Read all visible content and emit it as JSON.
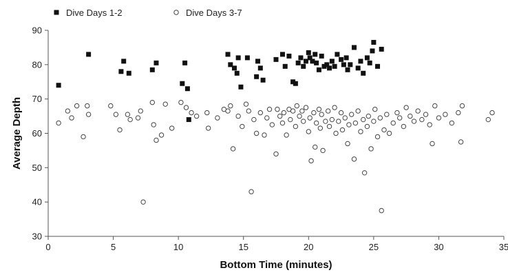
{
  "chart_data": {
    "type": "scatter",
    "title": "",
    "xlabel": "Bottom Time (minutes)",
    "ylabel": "Average Depth",
    "xlim": [
      0,
      35
    ],
    "ylim": [
      30,
      90
    ],
    "xticks": [
      0,
      5,
      10,
      15,
      20,
      25,
      30,
      35
    ],
    "yticks": [
      30,
      40,
      50,
      60,
      70,
      80,
      90
    ],
    "grid": false,
    "legend_position": "top-left",
    "series": [
      {
        "name": "Dive Days 1-2",
        "marker": "filled-square",
        "color": "#111111",
        "points": [
          [
            0.8,
            74.0
          ],
          [
            3.1,
            83.0
          ],
          [
            5.6,
            78.0
          ],
          [
            5.8,
            81.0
          ],
          [
            6.2,
            77.5
          ],
          [
            8.0,
            78.5
          ],
          [
            8.3,
            80.5
          ],
          [
            10.3,
            74.5
          ],
          [
            10.5,
            80.5
          ],
          [
            10.7,
            73.0
          ],
          [
            10.8,
            64.0
          ],
          [
            13.8,
            83.0
          ],
          [
            14.0,
            80.0
          ],
          [
            14.3,
            79.0
          ],
          [
            14.5,
            77.5
          ],
          [
            14.6,
            82.0
          ],
          [
            14.8,
            73.5
          ],
          [
            15.3,
            82.0
          ],
          [
            16.0,
            76.5
          ],
          [
            16.1,
            81.0
          ],
          [
            16.3,
            79.0
          ],
          [
            16.5,
            75.5
          ],
          [
            17.5,
            81.5
          ],
          [
            18.0,
            83.0
          ],
          [
            18.2,
            79.5
          ],
          [
            18.5,
            82.5
          ],
          [
            18.8,
            75.0
          ],
          [
            19.0,
            74.5
          ],
          [
            19.2,
            80.5
          ],
          [
            19.4,
            82.0
          ],
          [
            19.6,
            79.5
          ],
          [
            19.8,
            81.0
          ],
          [
            20.0,
            83.5
          ],
          [
            20.1,
            82.0
          ],
          [
            20.3,
            81.0
          ],
          [
            20.5,
            83.0
          ],
          [
            20.6,
            80.5
          ],
          [
            20.8,
            78.5
          ],
          [
            21.0,
            82.5
          ],
          [
            21.2,
            79.5
          ],
          [
            21.4,
            80.0
          ],
          [
            21.6,
            79.0
          ],
          [
            21.8,
            81.0
          ],
          [
            22.0,
            79.5
          ],
          [
            22.2,
            83.0
          ],
          [
            22.5,
            81.5
          ],
          [
            22.7,
            80.0
          ],
          [
            22.9,
            82.0
          ],
          [
            23.0,
            78.5
          ],
          [
            23.2,
            80.0
          ],
          [
            23.5,
            85.0
          ],
          [
            23.8,
            79.0
          ],
          [
            24.0,
            81.0
          ],
          [
            24.2,
            77.5
          ],
          [
            24.5,
            82.0
          ],
          [
            24.7,
            80.5
          ],
          [
            24.9,
            84.0
          ],
          [
            25.0,
            86.5
          ],
          [
            25.3,
            79.5
          ],
          [
            25.6,
            84.5
          ]
        ]
      },
      {
        "name": "Dive Days 3-7",
        "marker": "open-circle",
        "color": "#444444",
        "points": [
          [
            0.8,
            63.0
          ],
          [
            1.5,
            66.5
          ],
          [
            1.8,
            64.5
          ],
          [
            2.2,
            68.0
          ],
          [
            2.7,
            59.0
          ],
          [
            3.0,
            68.0
          ],
          [
            3.1,
            65.5
          ],
          [
            4.8,
            68.0
          ],
          [
            5.2,
            65.5
          ],
          [
            5.5,
            61.0
          ],
          [
            6.1,
            65.5
          ],
          [
            6.3,
            64.0
          ],
          [
            6.9,
            64.5
          ],
          [
            7.1,
            66.5
          ],
          [
            7.3,
            40.0
          ],
          [
            8.0,
            69.0
          ],
          [
            8.1,
            62.5
          ],
          [
            8.3,
            58.0
          ],
          [
            8.7,
            59.5
          ],
          [
            9.0,
            68.5
          ],
          [
            9.5,
            61.5
          ],
          [
            10.2,
            69.0
          ],
          [
            10.6,
            67.5
          ],
          [
            11.0,
            66.0
          ],
          [
            11.4,
            65.0
          ],
          [
            12.2,
            66.0
          ],
          [
            12.3,
            61.5
          ],
          [
            13.0,
            64.5
          ],
          [
            13.5,
            67.0
          ],
          [
            13.8,
            66.5
          ],
          [
            14.0,
            68.0
          ],
          [
            14.2,
            55.5
          ],
          [
            14.6,
            65.0
          ],
          [
            14.9,
            62.0
          ],
          [
            15.2,
            68.5
          ],
          [
            15.4,
            66.5
          ],
          [
            15.6,
            43.0
          ],
          [
            15.8,
            64.0
          ],
          [
            16.0,
            60.0
          ],
          [
            16.3,
            66.0
          ],
          [
            16.6,
            59.5
          ],
          [
            16.8,
            64.5
          ],
          [
            17.0,
            67.0
          ],
          [
            17.2,
            62.5
          ],
          [
            17.5,
            54.0
          ],
          [
            17.6,
            67.0
          ],
          [
            17.8,
            65.0
          ],
          [
            18.0,
            63.0
          ],
          [
            18.1,
            66.0
          ],
          [
            18.3,
            59.5
          ],
          [
            18.5,
            67.0
          ],
          [
            18.6,
            64.0
          ],
          [
            18.8,
            66.5
          ],
          [
            19.0,
            62.0
          ],
          [
            19.1,
            68.0
          ],
          [
            19.3,
            65.0
          ],
          [
            19.5,
            66.5
          ],
          [
            19.6,
            63.5
          ],
          [
            19.8,
            67.5
          ],
          [
            20.0,
            60.5
          ],
          [
            20.1,
            64.5
          ],
          [
            20.2,
            52.0
          ],
          [
            20.4,
            66.0
          ],
          [
            20.5,
            56.0
          ],
          [
            20.6,
            63.0
          ],
          [
            20.8,
            67.0
          ],
          [
            20.9,
            61.5
          ],
          [
            21.0,
            65.5
          ],
          [
            21.1,
            55.0
          ],
          [
            21.3,
            63.5
          ],
          [
            21.5,
            66.5
          ],
          [
            21.6,
            62.0
          ],
          [
            21.8,
            64.0
          ],
          [
            22.0,
            67.5
          ],
          [
            22.1,
            60.0
          ],
          [
            22.3,
            63.5
          ],
          [
            22.5,
            66.0
          ],
          [
            22.6,
            61.0
          ],
          [
            22.8,
            64.5
          ],
          [
            23.0,
            57.0
          ],
          [
            23.1,
            62.5
          ],
          [
            23.3,
            65.5
          ],
          [
            23.5,
            52.5
          ],
          [
            23.6,
            63.0
          ],
          [
            23.8,
            66.5
          ],
          [
            24.0,
            60.5
          ],
          [
            24.2,
            64.0
          ],
          [
            24.3,
            48.5
          ],
          [
            24.5,
            62.0
          ],
          [
            24.6,
            65.0
          ],
          [
            24.8,
            55.5
          ],
          [
            25.0,
            63.5
          ],
          [
            25.1,
            67.0
          ],
          [
            25.3,
            59.0
          ],
          [
            25.5,
            64.5
          ],
          [
            25.6,
            37.5
          ],
          [
            25.8,
            61.0
          ],
          [
            26.0,
            65.5
          ],
          [
            26.2,
            60.0
          ],
          [
            26.5,
            63.0
          ],
          [
            26.8,
            66.0
          ],
          [
            27.0,
            64.5
          ],
          [
            27.3,
            62.0
          ],
          [
            27.5,
            67.5
          ],
          [
            27.8,
            65.0
          ],
          [
            28.1,
            63.5
          ],
          [
            28.4,
            66.5
          ],
          [
            28.7,
            64.0
          ],
          [
            29.0,
            65.5
          ],
          [
            29.3,
            62.5
          ],
          [
            29.5,
            57.0
          ],
          [
            29.7,
            68.0
          ],
          [
            30.0,
            64.5
          ],
          [
            30.5,
            65.5
          ],
          [
            31.0,
            63.0
          ],
          [
            31.5,
            66.0
          ],
          [
            31.7,
            57.5
          ],
          [
            31.8,
            68.0
          ],
          [
            33.8,
            64.0
          ],
          [
            34.1,
            66.0
          ]
        ]
      }
    ]
  }
}
